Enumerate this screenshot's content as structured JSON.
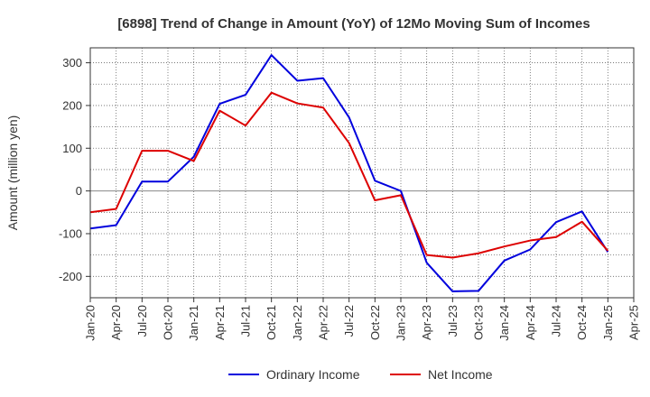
{
  "chart_data": {
    "type": "line",
    "title": "[6898]  Trend of Change in Amount (YoY) of 12Mo Moving Sum of Incomes",
    "ylabel": "Amount (million yen)",
    "xlabel": "",
    "ylim": [
      -250,
      335
    ],
    "yticks": [
      -200,
      -100,
      0,
      100,
      200,
      300
    ],
    "grid": true,
    "legend_position": "bottom",
    "x": [
      "Jan-20",
      "Feb-20",
      "Mar-20",
      "Apr-20",
      "May-20",
      "Jun-20",
      "Jul-20",
      "Aug-20",
      "Sep-20",
      "Oct-20",
      "Nov-20",
      "Dec-20",
      "Jan-21",
      "Feb-21",
      "Mar-21",
      "Apr-21",
      "May-21",
      "Jun-21",
      "Jul-21",
      "Aug-21",
      "Sep-21",
      "Oct-21",
      "Nov-21",
      "Dec-21",
      "Jan-22",
      "Feb-22",
      "Mar-22",
      "Apr-22",
      "May-22",
      "Jun-22",
      "Jul-22",
      "Aug-22",
      "Sep-22",
      "Oct-22",
      "Nov-22",
      "Dec-22",
      "Jan-23",
      "Feb-23",
      "Mar-23",
      "Apr-23",
      "May-23",
      "Jun-23",
      "Jul-23",
      "Aug-23",
      "Sep-23",
      "Oct-23",
      "Nov-23",
      "Dec-23",
      "Jan-24",
      "Feb-24",
      "Mar-24",
      "Apr-24",
      "May-24",
      "Jun-24",
      "Jul-24",
      "Aug-24",
      "Sep-24",
      "Oct-24",
      "Nov-24",
      "Dec-24",
      "Jan-25",
      "Feb-25",
      "Mar-25",
      "Apr-25"
    ],
    "xtick_labels": [
      "Jan-20",
      "Apr-20",
      "Jul-20",
      "Oct-20",
      "Jan-21",
      "Apr-21",
      "Jul-21",
      "Oct-21",
      "Jan-22",
      "Apr-22",
      "Jul-22",
      "Oct-22",
      "Jan-23",
      "Apr-23",
      "Jul-23",
      "Oct-23",
      "Jan-24",
      "Apr-24",
      "Jul-24",
      "Oct-24",
      "Jan-25",
      "Apr-25"
    ],
    "series": [
      {
        "name": "Ordinary Income",
        "color": "#0000dd",
        "points": [
          [
            "Jan-20",
            -88
          ],
          [
            "Apr-20",
            -80
          ],
          [
            "Jul-20",
            22
          ],
          [
            "Oct-20",
            22
          ],
          [
            "Jan-21",
            80
          ],
          [
            "Apr-21",
            204
          ],
          [
            "Jul-21",
            225
          ],
          [
            "Oct-21",
            318
          ],
          [
            "Jan-22",
            258
          ],
          [
            "Apr-22",
            264
          ],
          [
            "Jul-22",
            172
          ],
          [
            "Oct-22",
            24
          ],
          [
            "Jan-23",
            0
          ],
          [
            "Apr-23",
            -168
          ],
          [
            "Jul-23",
            -235
          ],
          [
            "Oct-23",
            -234
          ],
          [
            "Jan-24",
            -163
          ],
          [
            "Apr-24",
            -137
          ],
          [
            "Jul-24",
            -73
          ],
          [
            "Oct-24",
            -48
          ],
          [
            "Jan-25",
            -143
          ]
        ]
      },
      {
        "name": "Net Income",
        "color": "#dd0000",
        "points": [
          [
            "Jan-20",
            -50
          ],
          [
            "Apr-20",
            -42
          ],
          [
            "Jul-20",
            94
          ],
          [
            "Oct-20",
            94
          ],
          [
            "Jan-21",
            70
          ],
          [
            "Apr-21",
            188
          ],
          [
            "Jul-21",
            153
          ],
          [
            "Oct-21",
            230
          ],
          [
            "Jan-22",
            205
          ],
          [
            "Apr-22",
            195
          ],
          [
            "Jul-22",
            112
          ],
          [
            "Oct-22",
            -22
          ],
          [
            "Jan-23",
            -10
          ],
          [
            "Apr-23",
            -150
          ],
          [
            "Jul-23",
            -156
          ],
          [
            "Oct-23",
            -146
          ],
          [
            "Jan-24",
            -130
          ],
          [
            "Apr-24",
            -116
          ],
          [
            "Jul-24",
            -108
          ],
          [
            "Oct-24",
            -72
          ],
          [
            "Jan-25",
            -140
          ]
        ]
      }
    ]
  }
}
